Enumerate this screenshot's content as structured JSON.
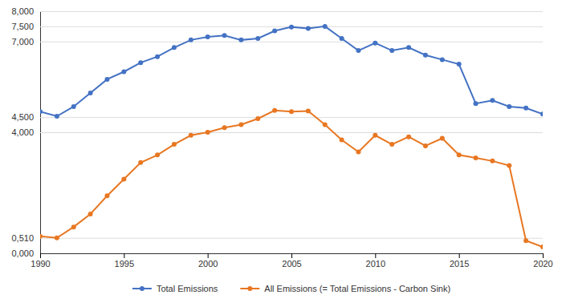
{
  "chart_data": {
    "type": "line",
    "x": [
      1990,
      1991,
      1992,
      1993,
      1994,
      1995,
      1996,
      1997,
      1998,
      1999,
      2000,
      2001,
      2002,
      2003,
      2004,
      2005,
      2006,
      2007,
      2008,
      2009,
      2010,
      2011,
      2012,
      2013,
      2014,
      2015,
      2016,
      2017,
      2018,
      2019,
      2020
    ],
    "series": [
      {
        "name": "Total Emissions",
        "color": "#4472C4",
        "marker": "circle",
        "values": [
          4680,
          4530,
          4850,
          5300,
          5750,
          6000,
          6300,
          6500,
          6800,
          7050,
          7150,
          7200,
          7050,
          7100,
          7350,
          7480,
          7430,
          7500,
          7100,
          6700,
          6950,
          6700,
          6800,
          6550,
          6400,
          6250,
          4950,
          5050,
          4850,
          4800,
          4600
        ]
      },
      {
        "name": "All Emissions (= Total Emissions - Carbon Sink)",
        "color": "#E87722",
        "marker": "circle",
        "values": [
          560,
          510,
          870,
          1300,
          1900,
          2450,
          3000,
          3250,
          3600,
          3900,
          4000,
          4150,
          4250,
          4450,
          4720,
          4680,
          4700,
          4250,
          3750,
          3350,
          3900,
          3600,
          3850,
          3550,
          3800,
          3250,
          3150,
          3050,
          2900,
          420,
          210
        ]
      }
    ],
    "xlim": [
      1990,
      2020
    ],
    "xticks": [
      1990,
      1995,
      2000,
      2005,
      2010,
      2015,
      2020
    ],
    "ylim": [
      0,
      8000
    ],
    "yticks": [
      {
        "value": 0,
        "label": "0,000"
      },
      {
        "value": 510,
        "label": "0,510"
      },
      {
        "value": 4000,
        "label": "4,000"
      },
      {
        "value": 4500,
        "label": "4,500"
      },
      {
        "value": 7000,
        "label": "7,000"
      },
      {
        "value": 7500,
        "label": "7,500"
      },
      {
        "value": 8000,
        "label": "8,000"
      }
    ],
    "grid": true,
    "legend": "bottom"
  }
}
